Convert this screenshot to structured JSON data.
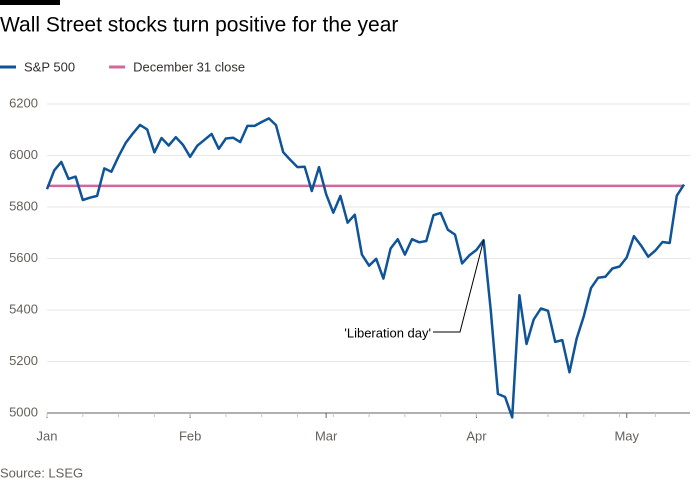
{
  "chart_data": {
    "type": "line",
    "title": "Wall Street stocks turn positive for the year",
    "source": "Source: LSEG",
    "categories": [
      "Jan",
      null,
      null,
      null,
      null,
      null,
      null,
      null,
      null,
      null,
      null,
      null,
      null,
      null,
      null,
      null,
      null,
      null,
      null,
      null,
      "Feb",
      null,
      null,
      null,
      null,
      null,
      null,
      null,
      null,
      null,
      null,
      null,
      null,
      null,
      null,
      null,
      null,
      null,
      null,
      "Mar",
      null,
      null,
      null,
      null,
      null,
      null,
      null,
      null,
      null,
      null,
      null,
      null,
      null,
      null,
      null,
      null,
      null,
      null,
      null,
      null,
      "Apr",
      null,
      null,
      null,
      null,
      null,
      null,
      null,
      null,
      null,
      null,
      null,
      null,
      null,
      null,
      null,
      null,
      null,
      null,
      null,
      null,
      "May",
      null,
      null,
      null,
      null,
      null,
      null,
      null,
      null
    ],
    "series": [
      {
        "name": "S&P 500",
        "color": "#0f5499",
        "values": [
          5869,
          5942,
          5975,
          5909,
          5918,
          5827,
          5836,
          5843,
          5950,
          5937,
          5997,
          6049,
          6086,
          6119,
          6101,
          6012,
          6068,
          6039,
          6071,
          6041,
          5995,
          6038,
          6061,
          6084,
          6026,
          6066,
          6069,
          6052,
          6115,
          6115,
          6130,
          6144,
          6118,
          6013,
          5983,
          5955,
          5956,
          5862,
          5955,
          5850,
          5778,
          5843,
          5739,
          5770,
          5615,
          5572,
          5599,
          5522,
          5639,
          5675,
          5615,
          5675,
          5663,
          5668,
          5768,
          5777,
          5712,
          5693,
          5581,
          5612,
          5633,
          5671,
          5397,
          5074,
          5062,
          4983,
          5457,
          5268,
          5363,
          5406,
          5397,
          5276,
          5283,
          5158,
          5288,
          5376,
          5485,
          5525,
          5529,
          5561,
          5569,
          5604,
          5687,
          5650,
          5607,
          5631,
          5664,
          5660,
          5844,
          5887
        ]
      }
    ],
    "reference": {
      "name": "December 31 close",
      "value": 5882,
      "color": "#d2679a"
    },
    "annotation": {
      "text": "'Liberation day'",
      "index": 61
    },
    "ylim": [
      5000,
      6200
    ],
    "yticks": [
      5000,
      5200,
      5400,
      5600,
      5800,
      6000,
      6200
    ],
    "grid": true
  }
}
